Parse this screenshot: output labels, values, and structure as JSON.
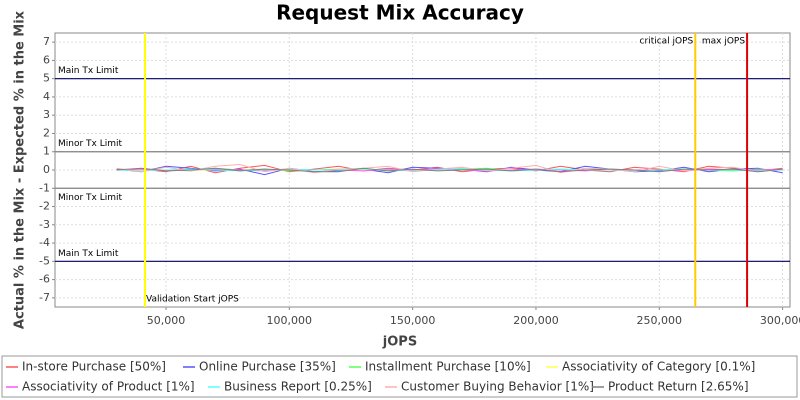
{
  "chart_data": {
    "type": "line",
    "title": "Request Mix Accuracy",
    "x_label": "jOPS",
    "y_label": "Actual % in the Mix - Expected % in the Mix",
    "x": [
      30000,
      40000,
      50000,
      60000,
      70000,
      80000,
      90000,
      100000,
      110000,
      120000,
      130000,
      140000,
      150000,
      160000,
      170000,
      180000,
      190000,
      200000,
      210000,
      220000,
      230000,
      240000,
      250000,
      260000,
      270000,
      280000,
      290000,
      300000
    ],
    "series": [
      {
        "name": "In-store Purchase [50%]",
        "color": "#ff5555",
        "values": [
          0,
          0.05,
          -0.1,
          0.2,
          -0.15,
          0.1,
          0.25,
          -0.1,
          0.05,
          0.2,
          -0.05,
          0.1,
          0,
          0.15,
          -0.1,
          0.05,
          0.1,
          -0.05,
          0.2,
          0,
          -0.1,
          0.15,
          0.05,
          -0.1,
          0.2,
          0.1,
          -0.05,
          0.1
        ]
      },
      {
        "name": "Online Purchase [35%]",
        "color": "#5555ff",
        "values": [
          0.05,
          -0.1,
          0.2,
          0.1,
          -0.05,
          0.05,
          -0.25,
          0.1,
          -0.1,
          -0.05,
          0.05,
          -0.15,
          0.15,
          0.1,
          0.05,
          -0.1,
          0.15,
          0,
          -0.1,
          0.2,
          0.05,
          -0.1,
          -0.05,
          0.15,
          -0.1,
          0.05,
          0.1,
          -0.15
        ]
      },
      {
        "name": "Installment Purchase [10%]",
        "color": "#55ff55",
        "values": [
          0,
          0.05,
          0,
          -0.05,
          0.1,
          0,
          0.05,
          -0.05,
          0,
          0.05,
          0.05,
          -0.05,
          0,
          0,
          0.05,
          0.1,
          -0.05,
          0,
          0.05,
          0,
          0.05,
          -0.05,
          0,
          0.05,
          0,
          -0.05,
          0.05,
          0
        ]
      },
      {
        "name": "Associativity of Category [0.1%]",
        "color": "#ffff55",
        "values": [
          0,
          0,
          0,
          0,
          0,
          0,
          0,
          0,
          0,
          0,
          0,
          0,
          0,
          0,
          0,
          0,
          0,
          0,
          0,
          0,
          0,
          0,
          0,
          0,
          0,
          0,
          0,
          0
        ]
      },
      {
        "name": "Associativity of Product [1%]",
        "color": "#ff55ff",
        "values": [
          0,
          0.05,
          -0.05,
          0,
          0.05,
          0,
          -0.05,
          0.05,
          0,
          0,
          -0.05,
          0.05,
          0,
          0.05,
          0,
          -0.05,
          0,
          0.05,
          0,
          -0.05,
          0.05,
          0,
          0,
          -0.05,
          0.05,
          0,
          0,
          0.05
        ]
      },
      {
        "name": "Business Report [0.25%]",
        "color": "#55ffff",
        "values": [
          0,
          -0.05,
          0,
          0.05,
          0,
          -0.05,
          0,
          0.05,
          0,
          0,
          0.05,
          0,
          -0.05,
          0,
          0.1,
          0,
          -0.05,
          0,
          0.05,
          0,
          0,
          -0.05,
          0,
          0.05,
          0,
          0,
          -0.05,
          0
        ]
      },
      {
        "name": "Customer Buying Behavior [1%]",
        "color": "#ffafaf",
        "values": [
          0.1,
          -0.1,
          0.15,
          -0.05,
          0.2,
          0.3,
          -0.1,
          0.1,
          -0.15,
          0.05,
          0.1,
          0.2,
          -0.1,
          0.05,
          0.15,
          -0.05,
          0.1,
          0.25,
          -0.15,
          0.1,
          0.05,
          -0.1,
          0.2,
          -0.05,
          0.1,
          0.15,
          -0.1,
          0.05
        ]
      },
      {
        "name": "Product Return [2.65%]",
        "color": "#808080",
        "values": [
          0,
          0.1,
          -0.05,
          0,
          0.1,
          -0.05,
          0.05,
          0,
          -0.1,
          -0.1,
          0.1,
          -0.05,
          0.05,
          -0.05,
          0,
          0.05,
          -0.05,
          0.05,
          -0.1,
          0,
          0.05,
          0,
          -0.1,
          0.05,
          0,
          0.05,
          -0.1,
          0.05
        ]
      }
    ],
    "xlim": [
      5000,
      303000
    ],
    "ylim": [
      -7.5,
      7.5
    ],
    "xticks": [
      {
        "value": 50000,
        "label": "50,000"
      },
      {
        "value": 100000,
        "label": "100,000"
      },
      {
        "value": 150000,
        "label": "150,000"
      },
      {
        "value": 200000,
        "label": "200,000"
      },
      {
        "value": 250000,
        "label": "250,000"
      },
      {
        "value": 300000,
        "label": "300,000"
      }
    ],
    "yticks": [
      -7,
      -6,
      -5,
      -4,
      -3,
      -2,
      -1,
      0,
      1,
      2,
      3,
      4,
      5,
      6,
      7
    ],
    "grid": true,
    "y_markers": [
      {
        "label": "Main Tx Limit",
        "value": 5,
        "color": "#000066"
      },
      {
        "label": "Minor Tx Limit",
        "value": 1,
        "color": "#808080"
      },
      {
        "label": "Minor Tx Limit",
        "value": -1,
        "color": "#808080"
      },
      {
        "label": "Main Tx Limit",
        "value": -5,
        "color": "#000066"
      }
    ],
    "x_markers": [
      {
        "label": "Validation Start jOPS",
        "value": 41500,
        "color": "#ffff00"
      },
      {
        "label": "critical jOPS",
        "value": 264600,
        "color": "#ffcc00"
      },
      {
        "label": "max jOPS",
        "value": 285600,
        "color": "#dd0000"
      }
    ]
  }
}
